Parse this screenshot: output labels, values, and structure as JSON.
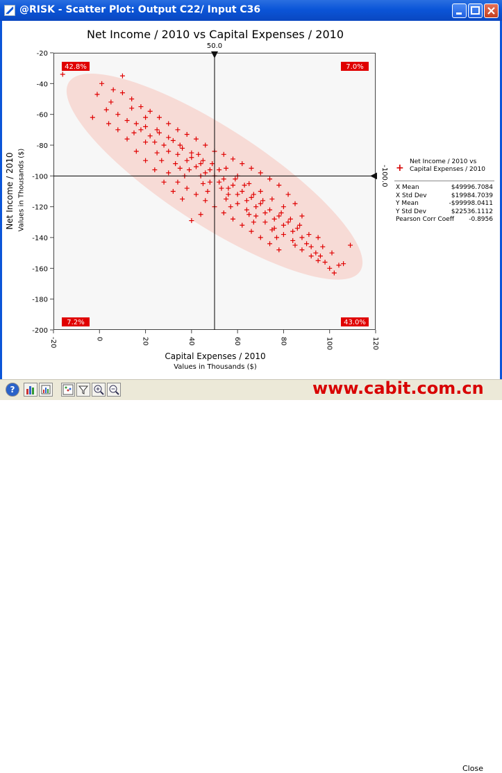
{
  "window": {
    "title": "@RISK - Scatter Plot: Output C22/ Input C36",
    "app_icon": "risk-app-icon",
    "controls": [
      "minimize-icon",
      "maximize-icon",
      "close-icon"
    ]
  },
  "toolbar": {
    "buttons": [
      "help-icon",
      "histogram-icon",
      "chart-type-icon",
      "scatter-icon",
      "filter-icon",
      "zoom-in-icon",
      "zoom-out-icon"
    ],
    "close_label": "Close"
  },
  "watermark": "www.cabit.com.cn",
  "chart_data": {
    "type": "scatter",
    "title": "Net Income / 2010 vs Capital Expenses / 2010",
    "xlabel": "Capital Expenses / 2010",
    "xlabel_sub": "Values in Thousands ($)",
    "ylabel": "Net Income / 2010",
    "ylabel_sub": "Values in Thousands ($)",
    "xlim": [
      -20,
      120
    ],
    "ylim": [
      -200,
      -20
    ],
    "x_ticks": [
      "-20",
      "0",
      "20",
      "40",
      "60",
      "80",
      "100",
      "120"
    ],
    "y_ticks": [
      "-20",
      "-40",
      "-60",
      "-80",
      "-100",
      "-120",
      "-140",
      "-160",
      "-180",
      "-200"
    ],
    "x_ticks_values": [
      -20,
      0,
      20,
      40,
      60,
      80,
      100,
      120
    ],
    "y_ticks_values": [
      -20,
      -40,
      -60,
      -80,
      -100,
      -120,
      -140,
      -160,
      -180,
      -200
    ],
    "x_marker": {
      "value": 50.0,
      "label": "50.0"
    },
    "y_marker": {
      "value": -100.0,
      "label": "-100.0"
    },
    "quadrant_labels": {
      "top_left": "42.8%",
      "top_right": "7.0%",
      "bottom_left": "7.2%",
      "bottom_right": "43.0%"
    },
    "grid": false,
    "marker_color": "#e00000",
    "ellipse_color": "#f7d6d0",
    "legend": {
      "position": "right",
      "series_name_line1": "Net Income / 2010 vs",
      "series_name_line2": "Capital Expenses / 2010",
      "stats": [
        {
          "label": "X Mean",
          "value": "$49996.7084"
        },
        {
          "label": "X Std Dev",
          "value": "$19984.7039"
        },
        {
          "label": "Y Mean",
          "value": "-$99998.0411"
        },
        {
          "label": "Y Std Dev",
          "value": "$22536.1112"
        },
        {
          "label": "Pearson Corr Coeff",
          "value": "-0.8956"
        }
      ]
    },
    "points": [
      [
        -16,
        -34
      ],
      [
        -3,
        -62
      ],
      [
        10,
        -35
      ],
      [
        1,
        -40
      ],
      [
        -1,
        -47
      ],
      [
        5,
        -52
      ],
      [
        3,
        -57
      ],
      [
        8,
        -60
      ],
      [
        12,
        -64
      ],
      [
        14,
        -56
      ],
      [
        16,
        -66
      ],
      [
        18,
        -70
      ],
      [
        20,
        -62
      ],
      [
        22,
        -74
      ],
      [
        24,
        -78
      ],
      [
        26,
        -72
      ],
      [
        28,
        -80
      ],
      [
        30,
        -84
      ],
      [
        32,
        -77
      ],
      [
        34,
        -86
      ],
      [
        36,
        -82
      ],
      [
        38,
        -90
      ],
      [
        40,
        -88
      ],
      [
        42,
        -94
      ],
      [
        44,
        -92
      ],
      [
        46,
        -98
      ],
      [
        48,
        -96
      ],
      [
        50,
        -100
      ],
      [
        52,
        -104
      ],
      [
        54,
        -102
      ],
      [
        56,
        -108
      ],
      [
        58,
        -106
      ],
      [
        60,
        -112
      ],
      [
        62,
        -110
      ],
      [
        64,
        -116
      ],
      [
        66,
        -114
      ],
      [
        68,
        -120
      ],
      [
        70,
        -118
      ],
      [
        72,
        -124
      ],
      [
        74,
        -122
      ],
      [
        76,
        -128
      ],
      [
        78,
        -126
      ],
      [
        80,
        -132
      ],
      [
        82,
        -130
      ],
      [
        84,
        -136
      ],
      [
        86,
        -134
      ],
      [
        88,
        -140
      ],
      [
        90,
        -144
      ],
      [
        92,
        -146
      ],
      [
        94,
        -150
      ],
      [
        96,
        -152
      ],
      [
        98,
        -156
      ],
      [
        100,
        -160
      ],
      [
        102,
        -163
      ],
      [
        104,
        -158
      ],
      [
        106,
        -157
      ],
      [
        109,
        -145
      ],
      [
        95,
        -140
      ],
      [
        88,
        -126
      ],
      [
        85,
        -118
      ],
      [
        82,
        -112
      ],
      [
        78,
        -106
      ],
      [
        74,
        -102
      ],
      [
        70,
        -98
      ],
      [
        66,
        -95
      ],
      [
        62,
        -92
      ],
      [
        58,
        -89
      ],
      [
        54,
        -86
      ],
      [
        50,
        -84
      ],
      [
        46,
        -80
      ],
      [
        42,
        -76
      ],
      [
        38,
        -73
      ],
      [
        34,
        -70
      ],
      [
        30,
        -66
      ],
      [
        26,
        -62
      ],
      [
        22,
        -58
      ],
      [
        18,
        -55
      ],
      [
        14,
        -50
      ],
      [
        10,
        -46
      ],
      [
        6,
        -44
      ],
      [
        30,
        -98
      ],
      [
        34,
        -104
      ],
      [
        38,
        -108
      ],
      [
        42,
        -112
      ],
      [
        46,
        -116
      ],
      [
        50,
        -120
      ],
      [
        54,
        -124
      ],
      [
        58,
        -128
      ],
      [
        62,
        -132
      ],
      [
        66,
        -136
      ],
      [
        70,
        -140
      ],
      [
        74,
        -144
      ],
      [
        78,
        -148
      ],
      [
        40,
        -129
      ],
      [
        44,
        -125
      ],
      [
        36,
        -115
      ],
      [
        32,
        -110
      ],
      [
        28,
        -104
      ],
      [
        24,
        -96
      ],
      [
        20,
        -90
      ],
      [
        16,
        -84
      ],
      [
        12,
        -76
      ],
      [
        8,
        -70
      ],
      [
        4,
        -66
      ],
      [
        20,
        -78
      ],
      [
        25,
        -85
      ],
      [
        35,
        -95
      ],
      [
        45,
        -105
      ],
      [
        55,
        -115
      ],
      [
        65,
        -125
      ],
      [
        75,
        -135
      ],
      [
        85,
        -145
      ],
      [
        95,
        -155
      ],
      [
        15,
        -72
      ],
      [
        27,
        -90
      ],
      [
        37,
        -100
      ],
      [
        47,
        -110
      ],
      [
        57,
        -120
      ],
      [
        67,
        -130
      ],
      [
        77,
        -140
      ],
      [
        60,
        -100
      ],
      [
        65,
        -105
      ],
      [
        70,
        -110
      ],
      [
        75,
        -115
      ],
      [
        80,
        -120
      ],
      [
        55,
        -95
      ],
      [
        45,
        -90
      ],
      [
        40,
        -85
      ],
      [
        35,
        -80
      ],
      [
        30,
        -75
      ],
      [
        25,
        -70
      ],
      [
        20,
        -68
      ],
      [
        52,
        -96
      ],
      [
        48,
        -104
      ],
      [
        44,
        -100
      ],
      [
        56,
        -112
      ],
      [
        60,
        -118
      ],
      [
        64,
        -122
      ],
      [
        68,
        -126
      ],
      [
        72,
        -130
      ],
      [
        76,
        -134
      ],
      [
        80,
        -138
      ],
      [
        84,
        -142
      ],
      [
        88,
        -148
      ],
      [
        92,
        -152
      ],
      [
        33,
        -92
      ],
      [
        39,
        -96
      ],
      [
        43,
        -86
      ],
      [
        49,
        -92
      ],
      [
        53,
        -108
      ],
      [
        59,
        -102
      ],
      [
        63,
        -106
      ],
      [
        67,
        -112
      ],
      [
        71,
        -116
      ],
      [
        79,
        -124
      ],
      [
        83,
        -128
      ],
      [
        87,
        -132
      ],
      [
        91,
        -138
      ],
      [
        97,
        -146
      ],
      [
        101,
        -150
      ]
    ]
  }
}
